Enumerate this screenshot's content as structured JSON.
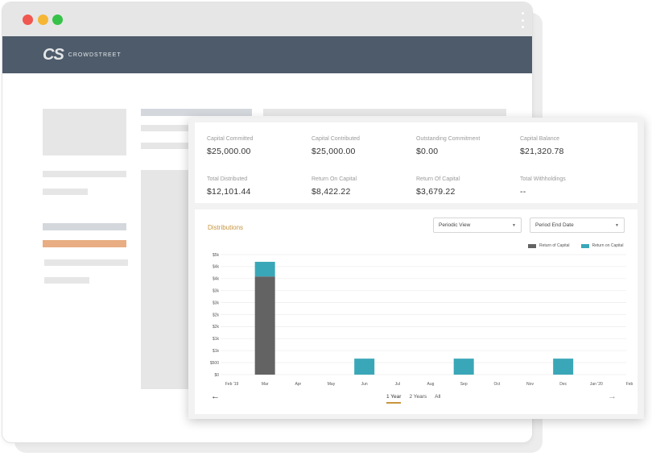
{
  "window": {
    "controls": [
      "close",
      "minimize",
      "maximize"
    ],
    "menu_icon": "kebab-icon"
  },
  "brand": {
    "mark": "CS",
    "name": "CROWDSTREET",
    "header_color": "#4e5b6a"
  },
  "stats": [
    {
      "label": "Capital Committed",
      "value": "$25,000.00"
    },
    {
      "label": "Capital Contributed",
      "value": "$25,000.00"
    },
    {
      "label": "Outstanding Commitment",
      "value": "$0.00"
    },
    {
      "label": "Capital Balance",
      "value": "$21,320.78"
    },
    {
      "label": "Total Distributed",
      "value": "$12,101.44"
    },
    {
      "label": "Return On Capital",
      "value": "$8,422.22"
    },
    {
      "label": "Return Of Capital",
      "value": "$3,679.22"
    },
    {
      "label": "Total Withholdings",
      "value": "--"
    }
  ],
  "distributions": {
    "title": "Distributions",
    "view_select": "Periodic View",
    "date_select": "Period End Date",
    "ranges": [
      "1 Year",
      "2 Years",
      "All"
    ],
    "active_range": "1 Year",
    "nav_prev_icon": "arrow-left-icon",
    "nav_next_icon": "arrow-right-icon"
  },
  "chart_data": {
    "type": "bar",
    "stacked": true,
    "categories": [
      "Feb '19",
      "Mar",
      "Apr",
      "May",
      "Jun",
      "Jul",
      "Aug",
      "Sep",
      "Oct",
      "Nov",
      "Dec",
      "Jan '20",
      "Feb"
    ],
    "series": [
      {
        "name": "Return of Capital",
        "color": "#636363",
        "values": [
          0,
          3679.22,
          0,
          0,
          0,
          0,
          0,
          0,
          0,
          0,
          0,
          0,
          0
        ]
      },
      {
        "name": "Return on Capital",
        "color": "#3aa7b8",
        "values": [
          0,
          550,
          0,
          0,
          600,
          0,
          0,
          600,
          0,
          0,
          600,
          0,
          0
        ]
      }
    ],
    "y_ticks": [
      "$0",
      "$500",
      "$1k",
      "$1k",
      "$2k",
      "$2k",
      "$3k",
      "$3k",
      "$4k",
      "$4k",
      "$5k"
    ],
    "ylim": [
      0,
      4500
    ],
    "grid": true,
    "legend": "top-right"
  }
}
